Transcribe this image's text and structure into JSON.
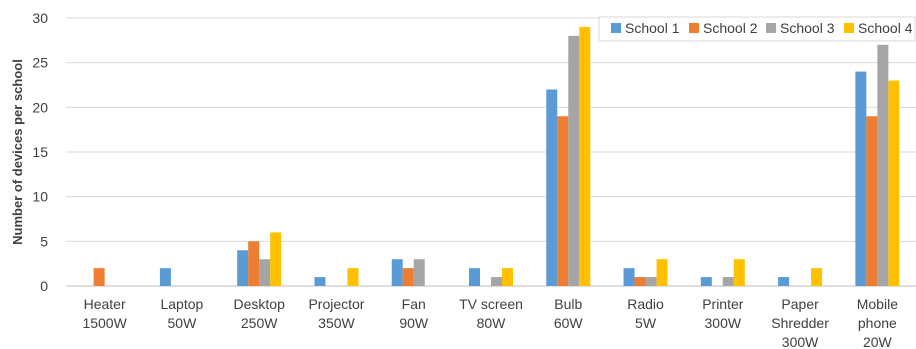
{
  "chart_data": {
    "type": "bar",
    "ylabel": "Number of devices per school",
    "xlabel": "",
    "ylim": [
      0,
      30
    ],
    "yticks": [
      0,
      5,
      10,
      15,
      20,
      25,
      30
    ],
    "grid": true,
    "legend_position": "top-right",
    "categories": [
      [
        "Heater",
        "1500W"
      ],
      [
        "Laptop",
        "50W"
      ],
      [
        "Desktop",
        "250W"
      ],
      [
        "Projector",
        "350W"
      ],
      [
        "Fan",
        "90W"
      ],
      [
        "TV screen",
        "80W"
      ],
      [
        "Bulb",
        "60W"
      ],
      [
        "Radio",
        "5W"
      ],
      [
        "Printer",
        "300W"
      ],
      [
        "Paper",
        "Shredder",
        "300W"
      ],
      [
        "Mobile",
        "phone",
        "20W"
      ]
    ],
    "series": [
      {
        "name": "School 1",
        "color": "#5b9bd5",
        "values": [
          0,
          2,
          4,
          1,
          3,
          2,
          22,
          2,
          1,
          1,
          24
        ]
      },
      {
        "name": "School 2",
        "color": "#ed7d31",
        "values": [
          2,
          0,
          5,
          0,
          2,
          0,
          19,
          1,
          0,
          0,
          19
        ]
      },
      {
        "name": "School 3",
        "color": "#a5a5a5",
        "values": [
          0,
          0,
          3,
          0,
          3,
          1,
          28,
          1,
          1,
          0,
          27
        ]
      },
      {
        "name": "School 4",
        "color": "#ffc000",
        "values": [
          0,
          0,
          6,
          2,
          0,
          2,
          29,
          3,
          3,
          2,
          23
        ]
      }
    ]
  }
}
